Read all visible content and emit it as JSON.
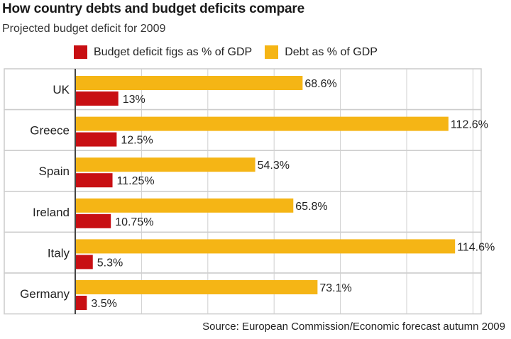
{
  "title": "How country debts and budget deficits compare",
  "subtitle": "Projected budget deficit for 2009",
  "source": "Source: European Commission/Economic forecast autumn 2009",
  "colors": {
    "deficit": "#c80f13",
    "debt": "#f5b515",
    "band_border": "#cccccc",
    "gridline": "#cfcfcf",
    "axis": "#444444"
  },
  "chart_data": {
    "type": "bar",
    "orientation": "horizontal",
    "categories": [
      "UK",
      "Greece",
      "Spain",
      "Ireland",
      "Italy",
      "Germany"
    ],
    "series": [
      {
        "name": "Debt as % of GDP",
        "values": [
          68.6,
          112.6,
          54.3,
          65.8,
          114.6,
          73.1
        ],
        "labels": [
          "68.6%",
          "112.6%",
          "54.3%",
          "65.8%",
          "114.6%",
          "73.1%"
        ]
      },
      {
        "name": "Budget deficit figs as % of GDP",
        "values": [
          13,
          12.5,
          11.25,
          10.75,
          5.3,
          3.5
        ],
        "labels": [
          "13%",
          "12.5%",
          "11.25%",
          "10.75%",
          "5.3%",
          "3.5%"
        ]
      }
    ],
    "xlim": [
      0,
      120
    ],
    "grid": true,
    "legend": "top"
  }
}
